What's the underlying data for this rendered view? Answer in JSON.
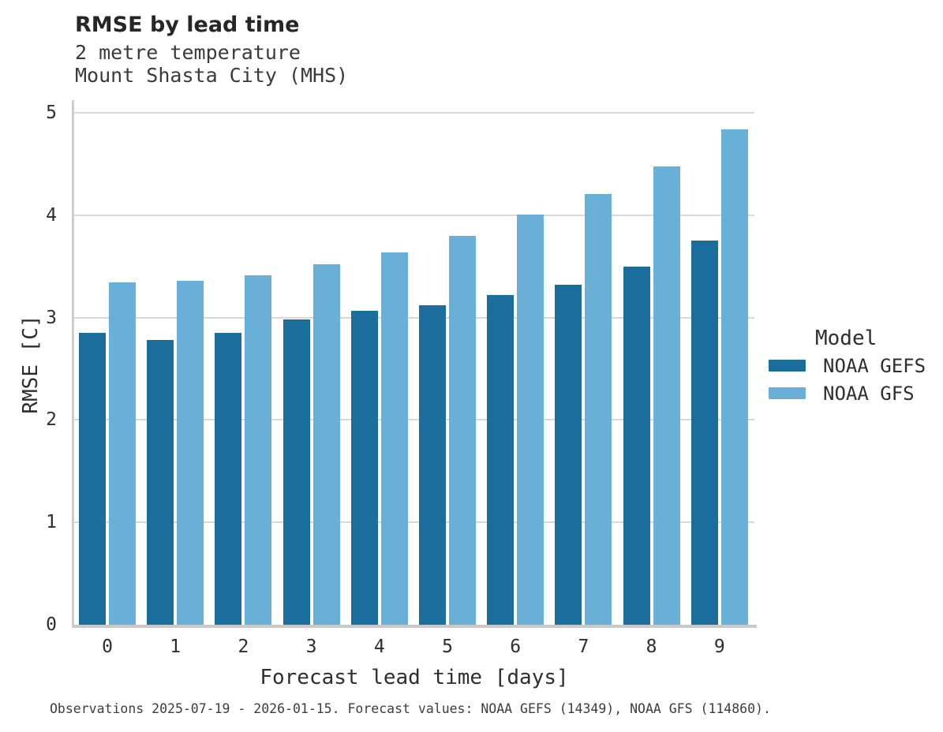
{
  "figure": {
    "title": "RMSE by lead time",
    "subtitle_line1": "2 metre temperature",
    "subtitle_line2": "Mount Shasta City (MHS)"
  },
  "axes": {
    "x_label": "Forecast lead time [days]",
    "y_label": "RMSE [C]",
    "x_ticks": [
      "0",
      "1",
      "2",
      "3",
      "4",
      "5",
      "6",
      "7",
      "8",
      "9"
    ],
    "y_ticks": [
      "0",
      "1",
      "2",
      "3",
      "4",
      "5"
    ]
  },
  "legend": {
    "title": "Model",
    "entries": [
      {
        "label": "NOAA GEFS",
        "color": "#1b6d9c"
      },
      {
        "label": "NOAA GFS",
        "color": "#68b0d8"
      }
    ]
  },
  "footer": {
    "caption": "Observations 2025-07-19 - 2026-01-15. Forecast values: NOAA GEFS (14349), NOAA GFS (114860)."
  },
  "chart_data": {
    "type": "bar",
    "title": "RMSE by lead time",
    "subtitle": [
      "2 metre temperature",
      "Mount Shasta City (MHS)"
    ],
    "categories": [
      0,
      1,
      2,
      3,
      4,
      5,
      6,
      7,
      8,
      9
    ],
    "series": [
      {
        "name": "NOAA GEFS",
        "color": "#1b6d9c",
        "values": [
          2.85,
          2.78,
          2.85,
          2.98,
          3.07,
          3.12,
          3.22,
          3.32,
          3.5,
          3.75
        ]
      },
      {
        "name": "NOAA GFS",
        "color": "#68b0d8",
        "values": [
          3.34,
          3.36,
          3.41,
          3.52,
          3.64,
          3.8,
          4.01,
          4.21,
          4.48,
          4.84
        ]
      }
    ],
    "xlabel": "Forecast lead time [days]",
    "ylabel": "RMSE [C]",
    "ylim": [
      0,
      5
    ],
    "grid": true,
    "legend_position": "right",
    "legend_title": "Model"
  },
  "style": {
    "gridline_color": "#d9d9d9",
    "spine_color": "#cdcdcd",
    "background": "#ffffff"
  }
}
